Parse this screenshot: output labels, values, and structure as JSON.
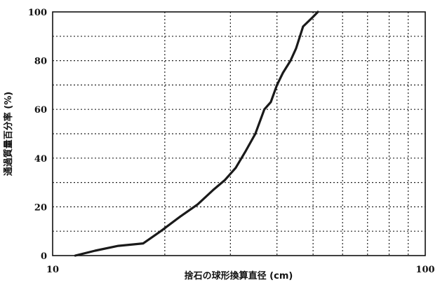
{
  "chart_data": {
    "type": "line",
    "title": "",
    "xlabel": "捨石の球形換算直径 (cm)",
    "ylabel": "通過質量百分率 (%)",
    "x_scale": "log",
    "xlim": [
      10,
      100
    ],
    "ylim": [
      0,
      100
    ],
    "x_ticks": [
      "10",
      "100"
    ],
    "y_ticks": [
      "0",
      "20",
      "40",
      "60",
      "80",
      "100"
    ],
    "grid": true,
    "legend": "none",
    "series": [
      {
        "color": "#1a1a1a",
        "points": [
          [
            11.5,
            0
          ],
          [
            13.0,
            2
          ],
          [
            15.0,
            4
          ],
          [
            17.5,
            5
          ],
          [
            19.5,
            10
          ],
          [
            22.0,
            16
          ],
          [
            24.5,
            21
          ],
          [
            27.0,
            27
          ],
          [
            29.0,
            31
          ],
          [
            31.0,
            36
          ],
          [
            33.0,
            43
          ],
          [
            35.0,
            50
          ],
          [
            37.0,
            60
          ],
          [
            38.5,
            63
          ],
          [
            40.0,
            70
          ],
          [
            41.5,
            75
          ],
          [
            43.5,
            80
          ],
          [
            45.0,
            85
          ],
          [
            47.0,
            94
          ],
          [
            50.0,
            98
          ],
          [
            51.5,
            100
          ]
        ]
      }
    ]
  }
}
